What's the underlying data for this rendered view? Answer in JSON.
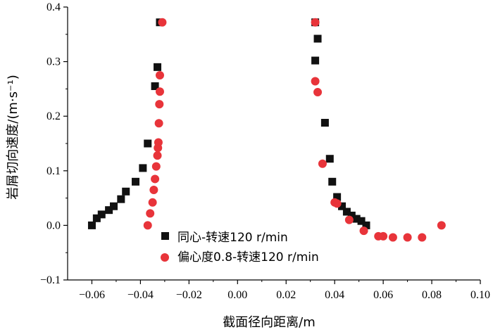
{
  "chart_data": {
    "type": "scatter",
    "xlabel": "截面径向距离/m",
    "ylabel": "岩屑切向速度/(m·s⁻¹)",
    "xlim": [
      -0.07,
      0.1
    ],
    "ylim": [
      -0.1,
      0.4
    ],
    "xticks": [
      -0.06,
      -0.04,
      -0.02,
      0.0,
      0.02,
      0.04,
      0.06,
      0.08,
      0.1
    ],
    "yticks": [
      -0.1,
      0.0,
      0.1,
      0.2,
      0.3,
      0.4
    ],
    "xtick_labels": [
      "−0.06",
      "−0.04",
      "−0.02",
      "0.00",
      "0.02",
      "0.04",
      "0.06",
      "0.08",
      "0.10"
    ],
    "ytick_labels": [
      "−0.1",
      "0.0",
      "0.1",
      "0.2",
      "0.3",
      "0.4"
    ],
    "grid": false,
    "legend_position": "bottom-right",
    "series": [
      {
        "name": "同心-转速120 r/min",
        "marker": "square",
        "color": "#111111",
        "points": [
          [
            -0.06,
            0.0
          ],
          [
            -0.058,
            0.013
          ],
          [
            -0.056,
            0.02
          ],
          [
            -0.053,
            0.028
          ],
          [
            -0.051,
            0.035
          ],
          [
            -0.048,
            0.048
          ],
          [
            -0.046,
            0.062
          ],
          [
            -0.042,
            0.08
          ],
          [
            -0.039,
            0.105
          ],
          [
            -0.037,
            0.15
          ],
          [
            -0.034,
            0.255
          ],
          [
            -0.033,
            0.29
          ],
          [
            -0.032,
            0.372
          ],
          [
            0.032,
            0.372
          ],
          [
            0.033,
            0.342
          ],
          [
            0.032,
            0.302
          ],
          [
            0.036,
            0.188
          ],
          [
            0.038,
            0.122
          ],
          [
            0.039,
            0.08
          ],
          [
            0.041,
            0.052
          ],
          [
            0.043,
            0.035
          ],
          [
            0.045,
            0.025
          ],
          [
            0.047,
            0.018
          ],
          [
            0.049,
            0.012
          ],
          [
            0.051,
            0.008
          ],
          [
            0.053,
            0.0
          ]
        ]
      },
      {
        "name": "偏心度0.8-转速120 r/min",
        "marker": "circle",
        "color": "#e8343a",
        "points": [
          [
            -0.037,
            0.0
          ],
          [
            -0.036,
            0.022
          ],
          [
            -0.035,
            0.042
          ],
          [
            -0.0345,
            0.065
          ],
          [
            -0.034,
            0.085
          ],
          [
            -0.0335,
            0.108
          ],
          [
            -0.033,
            0.128
          ],
          [
            -0.0328,
            0.142
          ],
          [
            -0.0326,
            0.152
          ],
          [
            -0.0324,
            0.187
          ],
          [
            -0.0322,
            0.222
          ],
          [
            -0.032,
            0.245
          ],
          [
            -0.032,
            0.275
          ],
          [
            -0.031,
            0.372
          ],
          [
            0.032,
            0.372
          ],
          [
            0.032,
            0.264
          ],
          [
            0.033,
            0.244
          ],
          [
            0.035,
            0.113
          ],
          [
            0.04,
            0.042
          ],
          [
            0.041,
            0.04
          ],
          [
            0.046,
            0.01
          ],
          [
            0.052,
            -0.01
          ],
          [
            0.058,
            -0.02
          ],
          [
            0.06,
            -0.02
          ],
          [
            0.064,
            -0.022
          ],
          [
            0.07,
            -0.022
          ],
          [
            0.076,
            -0.022
          ],
          [
            0.084,
            0.0
          ]
        ]
      }
    ]
  }
}
